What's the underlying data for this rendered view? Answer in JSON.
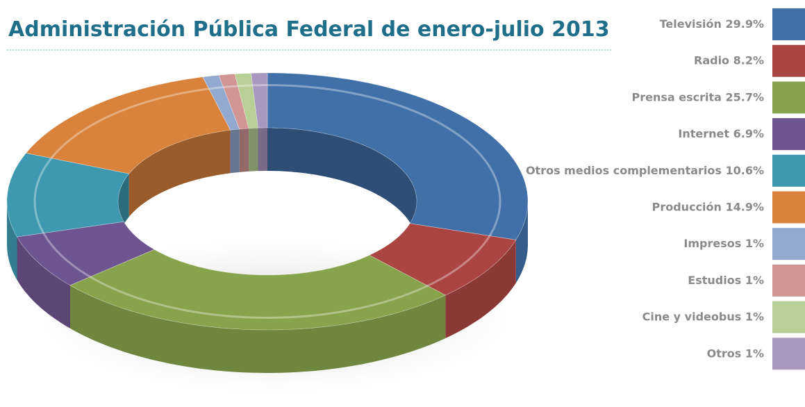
{
  "chart_data": {
    "type": "donut3d",
    "title": "Administración Pública Federal de enero-julio 2013",
    "categories": [
      "Televisión",
      "Radio",
      "Prensa escrita",
      "Internet",
      "Otros medios complementarios",
      "Producción",
      "Impresos",
      "Estudios",
      "Cine y videobus",
      "Otros"
    ],
    "values": [
      29.9,
      8.2,
      25.7,
      6.9,
      10.6,
      14.9,
      1,
      1,
      1,
      1
    ],
    "value_labels": [
      "29.9%",
      "8.2%",
      "25.7%",
      "6.9%",
      "10.6%",
      "14.9%",
      "1%",
      "1%",
      "1%",
      "1%"
    ],
    "colors": [
      "#4170a8",
      "#aa4542",
      "#87a34c",
      "#6f558f",
      "#3e99b0",
      "#d9823b",
      "#93a9d0",
      "#d19594",
      "#b8cf96",
      "#a898c0"
    ],
    "legend": "right"
  }
}
